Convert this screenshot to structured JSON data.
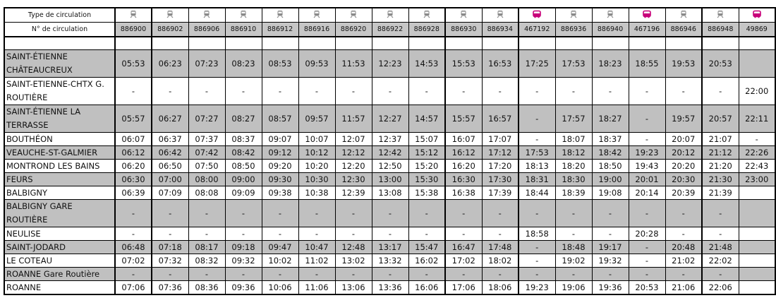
{
  "header": {
    "type_label": "Type de circulation",
    "number_label": "N° de circulation"
  },
  "colors": {
    "train": "#8a8a8a",
    "bus": "#c8007a",
    "shaded_row": "#c0c0c0"
  },
  "columns": [
    {
      "type": "train-icon",
      "number": "886900"
    },
    {
      "type": "train-icon",
      "number": "886902"
    },
    {
      "type": "train-icon",
      "number": "886906"
    },
    {
      "type": "train-icon",
      "number": "886910"
    },
    {
      "type": "train-icon",
      "number": "886912"
    },
    {
      "type": "train-icon",
      "number": "886916"
    },
    {
      "type": "train-icon",
      "number": "886920"
    },
    {
      "type": "train-icon",
      "number": "886922"
    },
    {
      "type": "train-icon",
      "number": "886928"
    },
    {
      "type": "train-icon",
      "number": "886930"
    },
    {
      "type": "train-icon",
      "number": "886934"
    },
    {
      "type": "bus-icon",
      "number": "467192"
    },
    {
      "type": "train-icon",
      "number": "886936"
    },
    {
      "type": "train-icon",
      "number": "886940"
    },
    {
      "type": "bus-icon",
      "number": "467196"
    },
    {
      "type": "train-icon",
      "number": "886946"
    },
    {
      "type": "train-icon",
      "number": "886948"
    },
    {
      "type": "bus-icon",
      "number": "49869"
    }
  ],
  "stops": [
    {
      "name": "SAINT-ÉTIENNE CHÂTEAUCREUX",
      "shaded": true,
      "tall": true,
      "times": [
        "05:53",
        "06:23",
        "07:23",
        "08:23",
        "08:53",
        "09:53",
        "11:53",
        "12:23",
        "14:53",
        "15:53",
        "16:53",
        "17:25",
        "17:53",
        "18:23",
        "18:55",
        "19:53",
        "20:53",
        ""
      ]
    },
    {
      "name": "SAINT-ETIENNE-CHTX G. ROUTIÈRE",
      "shaded": false,
      "tall": true,
      "times": [
        "-",
        "-",
        "-",
        "-",
        "-",
        "-",
        "-",
        "-",
        "-",
        "-",
        "-",
        "-",
        "-",
        "-",
        "-",
        "-",
        "-",
        "22:00"
      ]
    },
    {
      "name": "SAINT-ÉTIENNE LA TERRASSE",
      "shaded": true,
      "tall": true,
      "times": [
        "05:57",
        "06:27",
        "07:27",
        "08:27",
        "08:57",
        "09:57",
        "11:57",
        "12:27",
        "14:57",
        "15:57",
        "16:57",
        "-",
        "17:57",
        "18:27",
        "-",
        "19:57",
        "20:57",
        "22:11"
      ]
    },
    {
      "name": "BOUTHÉON",
      "shaded": false,
      "tall": false,
      "times": [
        "06:07",
        "06:37",
        "07:37",
        "08:37",
        "09:07",
        "10:07",
        "12:07",
        "12:37",
        "15:07",
        "16:07",
        "17:07",
        "-",
        "18:07",
        "18:37",
        "-",
        "20:07",
        "21:07",
        "-"
      ]
    },
    {
      "name": "VEAUCHE-ST-GALMIER",
      "shaded": true,
      "tall": false,
      "times": [
        "06:12",
        "06:42",
        "07:42",
        "08:42",
        "09:12",
        "10:12",
        "12:12",
        "12:42",
        "15:12",
        "16:12",
        "17:12",
        "17:53",
        "18:12",
        "18:42",
        "19:23",
        "20:12",
        "21:12",
        "22:26"
      ]
    },
    {
      "name": "MONTROND LES BAINS",
      "shaded": false,
      "tall": false,
      "times": [
        "06:20",
        "06:50",
        "07:50",
        "08:50",
        "09:20",
        "10:20",
        "12:20",
        "12:50",
        "15:20",
        "16:20",
        "17:20",
        "18:13",
        "18:20",
        "18:50",
        "19:43",
        "20:20",
        "21:20",
        "22:43"
      ]
    },
    {
      "name": "FEURS",
      "shaded": true,
      "tall": false,
      "times": [
        "06:30",
        "07:00",
        "08:00",
        "09:00",
        "09:30",
        "10:30",
        "12:30",
        "13:00",
        "15:30",
        "16:30",
        "17:30",
        "18:31",
        "18:30",
        "19:00",
        "20:01",
        "20:30",
        "21:30",
        "23:00"
      ]
    },
    {
      "name": "BALBIGNY",
      "shaded": false,
      "tall": false,
      "times": [
        "06:39",
        "07:09",
        "08:08",
        "09:09",
        "09:38",
        "10:38",
        "12:39",
        "13:08",
        "15:38",
        "16:38",
        "17:39",
        "18:44",
        "18:39",
        "19:08",
        "20:14",
        "20:39",
        "21:39",
        ""
      ]
    },
    {
      "name": "BALBIGNY GARE ROUTIÈRE",
      "shaded": true,
      "tall": true,
      "times": [
        "-",
        "-",
        "-",
        "-",
        "-",
        "-",
        "-",
        "-",
        "-",
        "-",
        "-",
        "-",
        "-",
        "-",
        "-",
        "-",
        "-",
        ""
      ]
    },
    {
      "name": "NEULISE",
      "shaded": false,
      "tall": false,
      "times": [
        "-",
        "-",
        "-",
        "-",
        "-",
        "-",
        "-",
        "-",
        "-",
        "-",
        "-",
        "18:58",
        "-",
        "-",
        "20:28",
        "-",
        "-",
        ""
      ]
    },
    {
      "name": "SAINT-JODARD",
      "shaded": true,
      "tall": false,
      "times": [
        "06:48",
        "07:18",
        "08:17",
        "09:18",
        "09:47",
        "10:47",
        "12:48",
        "13:17",
        "15:47",
        "16:47",
        "17:48",
        "-",
        "18:48",
        "19:17",
        "-",
        "20:48",
        "21:48",
        ""
      ]
    },
    {
      "name": "LE COTEAU",
      "shaded": false,
      "tall": false,
      "times": [
        "07:02",
        "07:32",
        "08:32",
        "09:32",
        "10:02",
        "11:02",
        "13:02",
        "13:32",
        "16:02",
        "17:02",
        "18:02",
        "-",
        "19:02",
        "19:32",
        "-",
        "21:02",
        "22:02",
        ""
      ]
    },
    {
      "name": "ROANNE Gare Routière",
      "shaded": true,
      "tall": false,
      "times": [
        "-",
        "-",
        "-",
        "-",
        "-",
        "-",
        "-",
        "-",
        "-",
        "-",
        "-",
        "-",
        "-",
        "-",
        "-",
        "-",
        "-",
        ""
      ]
    },
    {
      "name": "ROANNE",
      "shaded": false,
      "tall": false,
      "times": [
        "07:06",
        "07:36",
        "08:36",
        "09:36",
        "10:06",
        "11:06",
        "13:06",
        "13:36",
        "16:06",
        "17:06",
        "18:06",
        "19:23",
        "19:06",
        "19:36",
        "20:53",
        "21:06",
        "22:06",
        ""
      ]
    }
  ]
}
